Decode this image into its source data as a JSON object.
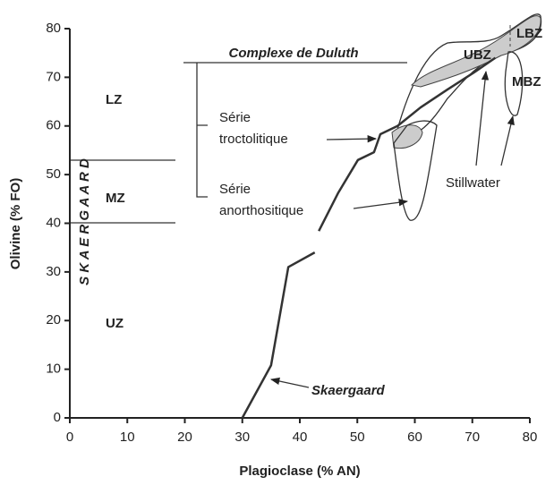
{
  "chart_data": {
    "type": "line",
    "xlabel": "Plagioclase (% AN)",
    "ylabel": "Olivine (% FO)",
    "x": [
      30,
      35,
      38,
      42.6,
      null,
      43.3,
      46.7,
      50.1,
      52.9,
      54,
      57,
      61,
      65.7,
      70.3,
      74
    ],
    "values": [
      0,
      10.8,
      31,
      34,
      null,
      38.4,
      46.3,
      53,
      54.6,
      58.3,
      60,
      63.8,
      67.5,
      71,
      74
    ],
    "color": "#333333",
    "xlim": [
      0,
      80
    ],
    "ylim": [
      0,
      80
    ],
    "xticks": [
      0,
      10,
      20,
      30,
      40,
      50,
      60,
      70,
      80
    ],
    "yticks": [
      0,
      10,
      20,
      30,
      40,
      50,
      60,
      70,
      80
    ],
    "annotations": [
      "Complexe de Duluth",
      "Série",
      "troctolitique",
      "Série",
      "anorthositique",
      "Stillwater",
      "LBZ",
      "UBZ",
      "MBZ",
      "LZ",
      "MZ",
      "UZ",
      "S K A E R G A A R D",
      "Skaergaard"
    ]
  }
}
